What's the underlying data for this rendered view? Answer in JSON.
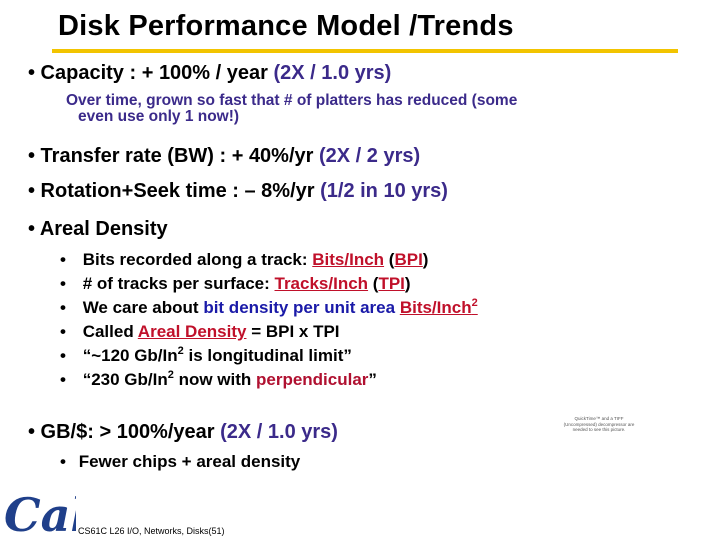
{
  "slide": {
    "title": "Disk Performance Model /Trends",
    "capacity": {
      "lead": "• Capacity : + 100% / year",
      "highlight": "(2X / 1.0 yrs)",
      "note_line1": "Over time, grown so fast that # of platters has reduced (some",
      "note_line2": "even use only 1 now!)"
    },
    "transfer": {
      "lead": "• Transfer rate (BW) : + 40%/yr",
      "highlight": "(2X / 2 yrs)"
    },
    "rotation": {
      "lead": "• Rotation+Seek time : – 8%/yr",
      "highlight": "(1/2 in 10 yrs)"
    },
    "areal": {
      "lead": "• Areal Density",
      "items": [
        {
          "bullet": "•",
          "text1": "Bits recorded along a track: ",
          "link": "Bits/Inch",
          "text2": " (",
          "abbr": "BPI",
          "text3": ")"
        },
        {
          "bullet": "•",
          "text1": "# of tracks per surface: ",
          "link": "Tracks/Inch",
          "text2": " (",
          "abbr": "TPI",
          "text3": ")"
        },
        {
          "bullet": "•",
          "text1": "We care about ",
          "highlight": "bit density per unit area",
          "space": " ",
          "link": "Bits/Inch",
          "sup": "2"
        },
        {
          "bullet": "•",
          "text1": "Called ",
          "link": "Areal Density",
          "text2": " = BPI x TPI"
        },
        {
          "bullet": "•",
          "text1": "“~120 Gb/In",
          "sup": "2",
          "text2": " is longitudinal limit”"
        },
        {
          "bullet": "•",
          "text1": "“230 Gb/In",
          "sup": "2",
          "text2": " now with ",
          "highlight": "perpendicular",
          "text3": "”"
        }
      ]
    },
    "gb": {
      "lead": "• GB/$: > 100%/year",
      "highlight": "(2X / 1.0 yrs)",
      "sub_bullet": "•",
      "sub_text": "Fewer chips + areal density"
    },
    "quicktime_notice": "QuickTime™ and a TIFF (Uncompressed) decompressor are needed to see this picture.",
    "footer": "CS61C L26 I/O, Networks, Disks(51)",
    "logo_text": "Cal"
  },
  "colors": {
    "title_rule": "#f2c400",
    "accent": "#3b2a8a",
    "red_link": "#c0102a",
    "navy": "#1a1aa8",
    "maroon": "#b01030",
    "logo_blue": "#1f3f8a"
  }
}
